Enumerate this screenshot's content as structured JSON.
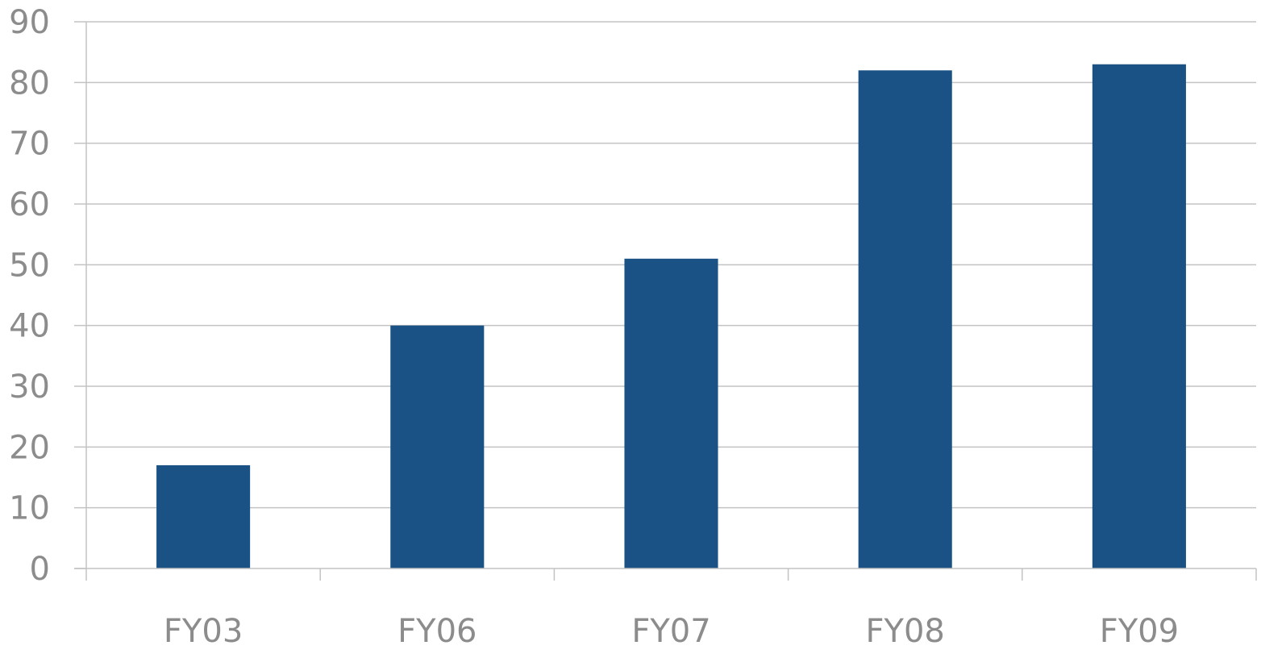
{
  "chart_data": {
    "type": "bar",
    "title": "",
    "xlabel": "",
    "ylabel": "",
    "categories": [
      "FY03",
      "FY06",
      "FY07",
      "FY08",
      "FY09"
    ],
    "values": [
      17,
      40,
      51,
      82,
      83
    ],
    "ylim": [
      0,
      90
    ],
    "yticks": [
      0,
      10,
      20,
      30,
      40,
      50,
      60,
      70,
      80,
      90
    ],
    "grid": true,
    "legend": "none",
    "bar_color": "#1a5286",
    "grid_color": "#c3c3c3",
    "label_color": "#8c8c8c"
  }
}
